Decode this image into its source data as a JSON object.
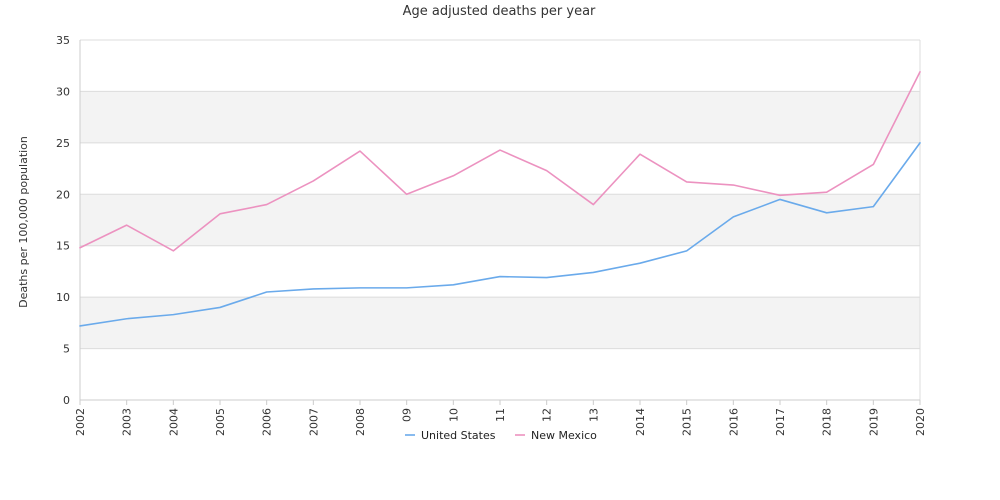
{
  "chart_data": {
    "type": "line",
    "title": "Age adjusted deaths per year",
    "ylabel": "Deaths per 100,000 population",
    "xlabel": "",
    "categories": [
      "2002",
      "2003",
      "2004",
      "2005",
      "2006",
      "2007",
      "2008",
      "09",
      "10",
      "11",
      "12",
      "13",
      "2014",
      "2015",
      "2016",
      "2017",
      "2018",
      "2019",
      "2020"
    ],
    "ylim": [
      0,
      35
    ],
    "yticks": [
      0,
      5,
      10,
      15,
      20,
      25,
      30,
      35
    ],
    "grid": true,
    "banded_background": true,
    "legend_position": "bottom-center",
    "series": [
      {
        "name": "United States",
        "color": "#6aaaeb",
        "values": [
          7.2,
          7.9,
          8.3,
          9.0,
          10.5,
          10.8,
          10.9,
          10.9,
          11.2,
          12.0,
          11.9,
          12.4,
          13.3,
          14.5,
          17.8,
          19.5,
          18.2,
          18.8,
          25.0
        ]
      },
      {
        "name": "New Mexico",
        "color": "#ec92c0",
        "values": [
          14.8,
          17.0,
          14.5,
          18.1,
          19.0,
          21.3,
          24.2,
          20.0,
          21.8,
          24.3,
          22.3,
          19.0,
          23.9,
          21.2,
          20.9,
          19.9,
          20.2,
          22.9,
          31.9
        ]
      }
    ]
  }
}
